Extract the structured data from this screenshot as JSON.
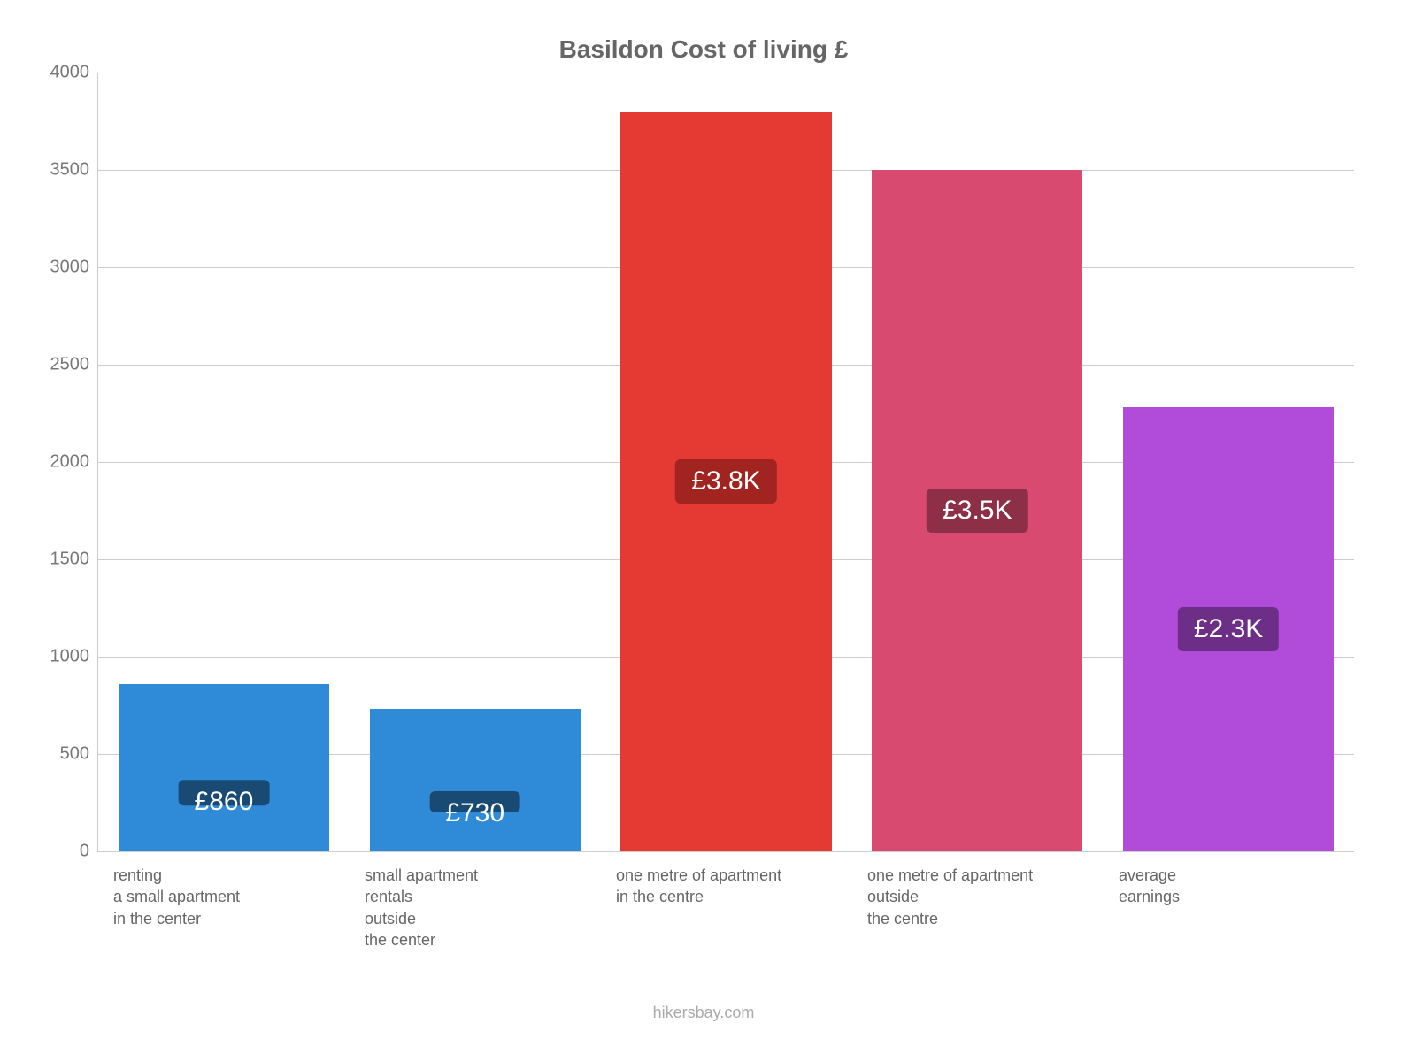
{
  "chart": {
    "type": "bar",
    "title": "Basildon Cost of living £",
    "title_color": "#666666",
    "title_fontsize": 28,
    "background_color": "#ffffff",
    "grid_color": "#cccccc",
    "axis_label_color": "#777777",
    "tick_fontsize": 20,
    "xlabel_fontsize": 18,
    "xlabel_color": "#666666",
    "ylim": [
      0,
      4000
    ],
    "ytick_step": 500,
    "yticks": [
      0,
      500,
      1000,
      1500,
      2000,
      2500,
      3000,
      3500,
      4000
    ],
    "bar_width": 0.84,
    "bars": [
      {
        "category": "renting\na small apartment\nin the center",
        "value": 860,
        "display": "£860",
        "color": "#2f8bd8",
        "badge_color": "#184a73"
      },
      {
        "category": "small apartment\nrentals\noutside\nthe center",
        "value": 730,
        "display": "£730",
        "color": "#2f8bd8",
        "badge_color": "#184a73"
      },
      {
        "category": "one metre of apartment\nin the centre",
        "value": 3800,
        "display": "£3.8K",
        "color": "#e53933",
        "badge_color": "#a22420"
      },
      {
        "category": "one metre of apartment\noutside\nthe centre",
        "value": 3500,
        "display": "£3.5K",
        "color": "#d84a70",
        "badge_color": "#8e2f48"
      },
      {
        "category": "average\nearnings",
        "value": 2280,
        "display": "£2.3K",
        "color": "#b04cd9",
        "badge_color": "#6d2e87"
      }
    ],
    "attribution": "hikersbay.com",
    "attribution_color": "#aaaaaa"
  }
}
